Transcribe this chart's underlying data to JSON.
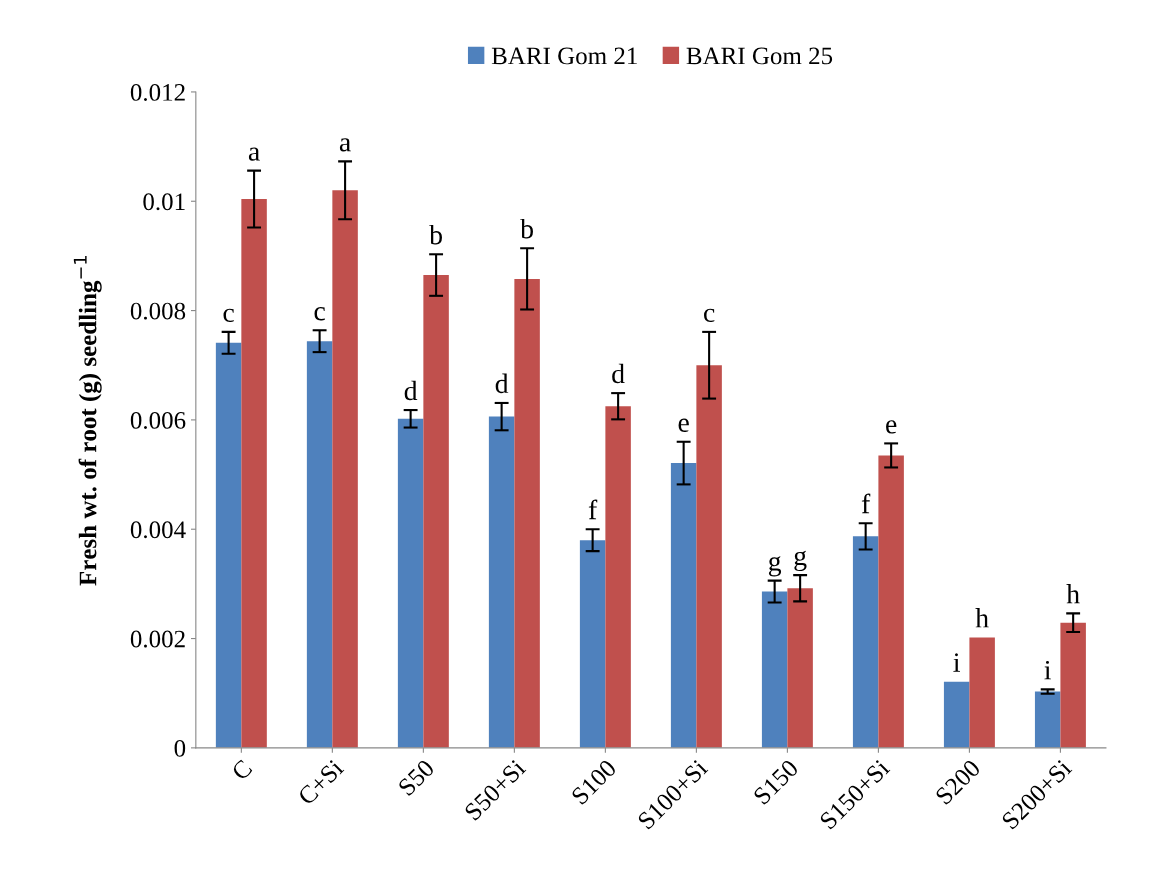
{
  "chart_data": {
    "type": "bar",
    "ylabel": "Fresh wt. of root (g) seedling$^{−1}$",
    "categories": [
      "C",
      "C+Si",
      "S50",
      "S50+Si",
      "S100",
      "S100+Si",
      "S150",
      "S150+Si",
      "S200",
      "S200+Si"
    ],
    "series": [
      {
        "name": "BARI Gom 21",
        "color": "#4f81bd",
        "values": [
          0.00741,
          0.00744,
          0.00602,
          0.00606,
          0.0038,
          0.00521,
          0.00286,
          0.00387,
          0.00121,
          0.00103
        ],
        "errors": [
          0.0002,
          0.0002,
          0.00016,
          0.00025,
          0.0002,
          0.00039,
          0.0002,
          0.00024,
          null,
          4e-05
        ],
        "value_labels": [
          "c",
          "c",
          "d",
          "d",
          "f",
          "e",
          "g",
          "f",
          "i",
          "i"
        ]
      },
      {
        "name": "BARI Gom 25",
        "color": "#c0504d",
        "values": [
          0.01004,
          0.0102,
          0.00865,
          0.00858,
          0.00625,
          0.007,
          0.00292,
          0.00535,
          0.00202,
          0.00229
        ],
        "errors": [
          0.00052,
          0.00053,
          0.00038,
          0.00056,
          0.00024,
          0.00061,
          0.00024,
          0.00022,
          null,
          0.00017
        ],
        "value_labels": [
          "a",
          "a",
          "b",
          "b",
          "d",
          "c",
          "g",
          "e",
          "h",
          "h"
        ]
      }
    ],
    "ylim": [
      0,
      0.012
    ],
    "yticks": [
      {
        "value": 0,
        "label": "0"
      },
      0.002,
      0.004,
      0.006,
      0.008,
      {
        "value": 0.01,
        "label": "0.01"
      },
      0.012
    ],
    "legend": "top",
    "grid": false
  }
}
